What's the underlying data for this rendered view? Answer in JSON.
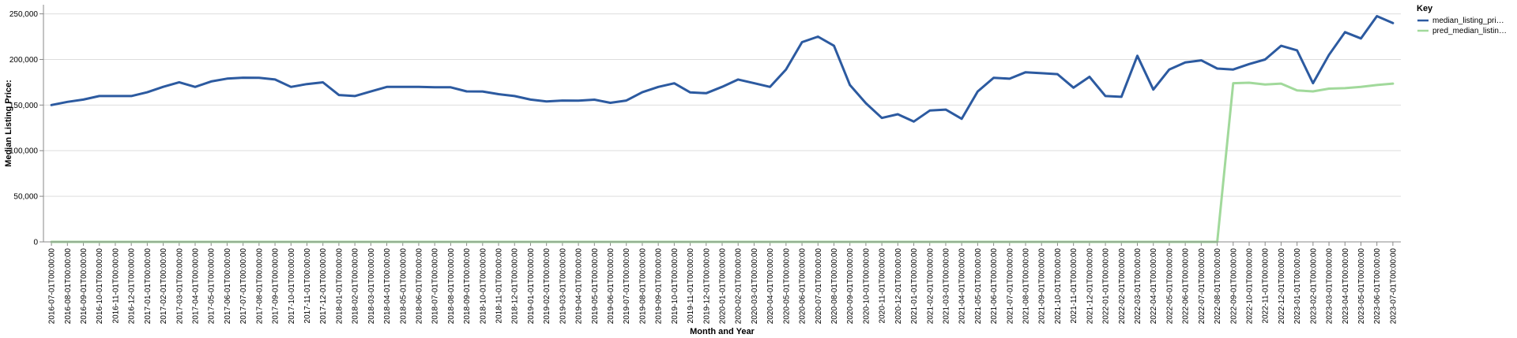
{
  "chart_data": {
    "type": "line",
    "xlabel": "Month and Year",
    "ylabel": "Median Listing Price:",
    "ylim": [
      0,
      260000
    ],
    "yticks": [
      0,
      50000,
      100000,
      150000,
      200000,
      250000
    ],
    "ytick_labels": [
      "0",
      "50,000",
      "100,000",
      "150,000",
      "200,000",
      "250,000"
    ],
    "grid": true,
    "legend": {
      "title": "Key",
      "position": "top-right",
      "entries": [
        "median_listing_pri…",
        "pred_median_listin…"
      ]
    },
    "x": [
      "2016-07-01T00:00:00",
      "2016-08-01T00:00:00",
      "2016-09-01T00:00:00",
      "2016-10-01T00:00:00",
      "2016-11-01T00:00:00",
      "2016-12-01T00:00:00",
      "2017-01-01T00:00:00",
      "2017-02-01T00:00:00",
      "2017-03-01T00:00:00",
      "2017-04-01T00:00:00",
      "2017-05-01T00:00:00",
      "2017-06-01T00:00:00",
      "2017-07-01T00:00:00",
      "2017-08-01T00:00:00",
      "2017-09-01T00:00:00",
      "2017-10-01T00:00:00",
      "2017-11-01T00:00:00",
      "2017-12-01T00:00:00",
      "2018-01-01T00:00:00",
      "2018-02-01T00:00:00",
      "2018-03-01T00:00:00",
      "2018-04-01T00:00:00",
      "2018-05-01T00:00:00",
      "2018-06-01T00:00:00",
      "2018-07-01T00:00:00",
      "2018-08-01T00:00:00",
      "2018-09-01T00:00:00",
      "2018-10-01T00:00:00",
      "2018-11-01T00:00:00",
      "2018-12-01T00:00:00",
      "2019-01-01T00:00:00",
      "2019-02-01T00:00:00",
      "2019-03-01T00:00:00",
      "2019-04-01T00:00:00",
      "2019-05-01T00:00:00",
      "2019-06-01T00:00:00",
      "2019-07-01T00:00:00",
      "2019-08-01T00:00:00",
      "2019-09-01T00:00:00",
      "2019-10-01T00:00:00",
      "2019-11-01T00:00:00",
      "2019-12-01T00:00:00",
      "2020-01-01T00:00:00",
      "2020-02-01T00:00:00",
      "2020-03-01T00:00:00",
      "2020-04-01T00:00:00",
      "2020-05-01T00:00:00",
      "2020-06-01T00:00:00",
      "2020-07-01T00:00:00",
      "2020-08-01T00:00:00",
      "2020-09-01T00:00:00",
      "2020-10-01T00:00:00",
      "2020-11-01T00:00:00",
      "2020-12-01T00:00:00",
      "2021-01-01T00:00:00",
      "2021-02-01T00:00:00",
      "2021-03-01T00:00:00",
      "2021-04-01T00:00:00",
      "2021-05-01T00:00:00",
      "2021-06-01T00:00:00",
      "2021-07-01T00:00:00",
      "2021-08-01T00:00:00",
      "2021-09-01T00:00:00",
      "2021-10-01T00:00:00",
      "2021-11-01T00:00:00",
      "2021-12-01T00:00:00",
      "2022-01-01T00:00:00",
      "2022-02-01T00:00:00",
      "2022-03-01T00:00:00",
      "2022-04-01T00:00:00",
      "2022-05-01T00:00:00",
      "2022-06-01T00:00:00",
      "2022-07-01T00:00:00",
      "2022-08-01T00:00:00",
      "2022-09-01T00:00:00",
      "2022-10-01T00:00:00",
      "2022-11-01T00:00:00",
      "2022-12-01T00:00:00",
      "2023-01-01T00:00:00",
      "2023-02-01T00:00:00",
      "2023-03-01T00:00:00",
      "2023-04-01T00:00:00",
      "2023-05-01T00:00:00",
      "2023-06-01T00:00:00",
      "2023-07-01T00:00:00"
    ],
    "series": [
      {
        "name": "median_listing_pri…",
        "color": "#2c5aa0",
        "values": [
          150000,
          153500,
          156000,
          159900,
          159900,
          159900,
          164000,
          170000,
          175000,
          169900,
          175900,
          179000,
          180000,
          179900,
          178000,
          169900,
          173000,
          174900,
          161000,
          159900,
          164900,
          169900,
          169900,
          169900,
          169500,
          169500,
          165000,
          164900,
          162000,
          159900,
          156000,
          154000,
          155000,
          154900,
          155900,
          152500,
          155000,
          164000,
          169900,
          173900,
          163900,
          163000,
          170000,
          178000,
          174000,
          169900,
          189000,
          219000,
          225000,
          215000,
          172000,
          152000,
          135900,
          139900,
          131900,
          144000,
          145000,
          134900,
          164900,
          179900,
          178900,
          186000,
          184900,
          183900,
          169000,
          181000,
          159900,
          159000,
          204000,
          167000,
          189000,
          196800,
          199000,
          190000,
          189000,
          195000,
          200000,
          215000,
          210000,
          174000,
          205000,
          229900,
          223000,
          247500,
          239900
        ]
      },
      {
        "name": "pred_median_listin…",
        "color": "#a1d99b",
        "values": [
          0,
          0,
          0,
          0,
          0,
          0,
          0,
          0,
          0,
          0,
          0,
          0,
          0,
          0,
          0,
          0,
          0,
          0,
          0,
          0,
          0,
          0,
          0,
          0,
          0,
          0,
          0,
          0,
          0,
          0,
          0,
          0,
          0,
          0,
          0,
          0,
          0,
          0,
          0,
          0,
          0,
          0,
          0,
          0,
          0,
          0,
          0,
          0,
          0,
          0,
          0,
          0,
          0,
          0,
          0,
          0,
          0,
          0,
          0,
          0,
          0,
          0,
          0,
          0,
          0,
          0,
          0,
          0,
          0,
          0,
          0,
          0,
          0,
          0,
          174000,
          174500,
          172500,
          173500,
          166000,
          165000,
          168000,
          168500,
          170000,
          172000,
          173500
        ]
      }
    ]
  }
}
